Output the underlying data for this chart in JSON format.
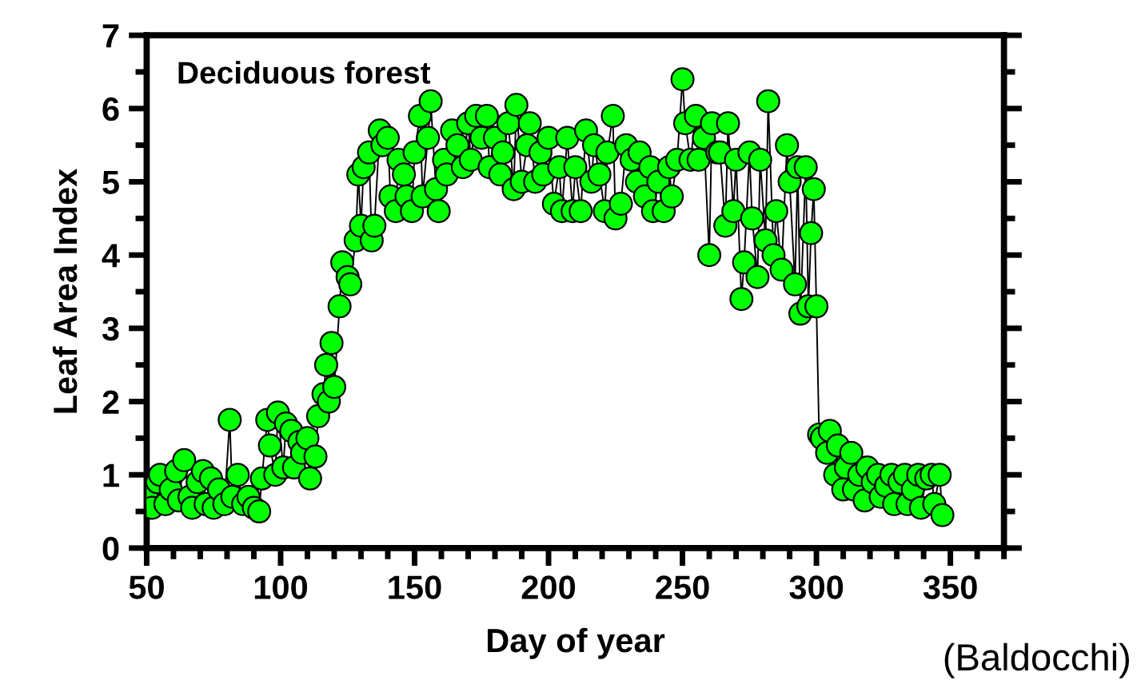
{
  "chart_data": {
    "type": "line",
    "title": "Deciduous forest",
    "xlabel": "Day of year",
    "ylabel": "Leaf Area Index",
    "annotations": [
      "(Baldocchi)"
    ],
    "x": [
      50,
      52,
      54,
      55,
      57,
      59,
      61,
      62,
      64,
      66,
      67,
      69,
      71,
      72,
      74,
      75,
      77,
      79,
      81,
      82,
      84,
      86,
      88,
      90,
      92,
      93,
      95,
      96,
      98,
      99,
      101,
      102,
      104,
      105,
      107,
      108,
      110,
      111,
      113,
      114,
      116,
      117,
      118,
      119,
      120,
      122,
      123,
      125,
      126,
      128,
      129,
      130,
      131,
      133,
      134,
      135,
      137,
      138,
      140,
      141,
      143,
      144,
      146,
      147,
      149,
      150,
      152,
      153,
      155,
      156,
      158,
      159,
      161,
      162,
      164,
      166,
      168,
      170,
      171,
      173,
      175,
      177,
      178,
      180,
      182,
      183,
      185,
      187,
      188,
      190,
      192,
      193,
      195,
      197,
      198,
      200,
      202,
      204,
      205,
      207,
      209,
      210,
      212,
      214,
      216,
      217,
      219,
      221,
      222,
      224,
      225,
      227,
      229,
      231,
      233,
      234,
      236,
      238,
      239,
      241,
      243,
      245,
      246,
      248,
      250,
      251,
      253,
      255,
      256,
      258,
      260,
      261,
      263,
      264,
      266,
      267,
      269,
      270,
      272,
      273,
      275,
      276,
      278,
      279,
      281,
      282,
      284,
      285,
      287,
      289,
      290,
      292,
      293,
      294,
      296,
      297,
      298,
      299,
      300,
      301,
      302,
      304,
      305,
      307,
      308,
      310,
      311,
      313,
      314,
      316,
      318,
      319,
      321,
      323,
      324,
      326,
      328,
      329,
      331,
      333,
      334,
      336,
      338,
      339,
      341,
      343,
      344,
      346,
      347
    ],
    "series": [
      {
        "color": "#00ff00",
        "values": [
          0.7,
          0.55,
          0.9,
          1.0,
          0.6,
          0.8,
          1.05,
          0.65,
          1.2,
          0.7,
          0.55,
          0.9,
          1.05,
          0.6,
          0.95,
          0.55,
          0.8,
          0.6,
          1.75,
          0.7,
          1.0,
          0.6,
          0.7,
          0.55,
          0.5,
          0.95,
          1.75,
          1.4,
          1.0,
          1.85,
          1.1,
          1.7,
          1.6,
          1.1,
          1.45,
          1.3,
          1.5,
          0.95,
          1.25,
          1.8,
          2.1,
          2.5,
          2.0,
          2.8,
          2.2,
          3.3,
          3.9,
          3.7,
          3.6,
          4.2,
          5.1,
          4.4,
          5.2,
          5.4,
          4.2,
          4.4,
          5.7,
          5.5,
          5.6,
          4.8,
          4.6,
          5.3,
          5.1,
          4.8,
          4.6,
          5.4,
          5.9,
          4.8,
          5.6,
          6.1,
          4.9,
          4.6,
          5.3,
          5.1,
          5.7,
          5.5,
          5.2,
          5.8,
          5.3,
          5.9,
          5.6,
          5.9,
          5.2,
          5.6,
          5.1,
          5.4,
          5.8,
          4.9,
          6.05,
          5.0,
          5.5,
          5.8,
          5.0,
          5.4,
          5.1,
          5.6,
          4.7,
          5.2,
          4.6,
          5.6,
          4.6,
          5.2,
          4.6,
          5.7,
          5.0,
          5.5,
          5.1,
          4.6,
          5.4,
          5.9,
          4.5,
          4.7,
          5.5,
          5.3,
          5.0,
          5.4,
          4.8,
          5.2,
          4.6,
          5.0,
          4.6,
          5.2,
          4.8,
          5.3,
          6.4,
          5.8,
          5.3,
          5.9,
          5.3,
          5.6,
          4.0,
          5.8,
          5.4,
          5.4,
          4.4,
          5.8,
          4.6,
          5.3,
          3.4,
          3.9,
          5.4,
          4.5,
          3.7,
          5.3,
          4.2,
          6.1,
          4.0,
          4.6,
          3.8,
          5.5,
          5.0,
          3.6,
          5.2,
          3.2,
          5.2,
          3.3,
          4.3,
          4.9,
          3.3,
          1.55,
          1.5,
          1.3,
          1.6,
          1.0,
          1.4,
          0.8,
          1.1,
          1.3,
          0.8,
          1.0,
          0.65,
          1.1,
          0.9,
          1.0,
          0.7,
          0.85,
          1.0,
          0.6,
          0.9,
          1.0,
          0.6,
          0.8,
          1.0,
          0.55,
          0.95,
          1.0,
          0.6,
          1.0,
          0.45
        ]
      }
    ],
    "marker": "circle",
    "line_style": "solid",
    "grid": false,
    "xlim": [
      50,
      370
    ],
    "xticks": [
      50,
      {
        "value": 60,
        "label": null
      },
      {
        "value": 70,
        "label": null
      },
      {
        "value": 80,
        "label": null
      },
      {
        "value": 90,
        "label": null
      },
      100,
      {
        "value": 110,
        "label": null
      },
      {
        "value": 120,
        "label": null
      },
      {
        "value": 130,
        "label": null
      },
      {
        "value": 140,
        "label": null
      },
      150,
      {
        "value": 160,
        "label": null
      },
      {
        "value": 170,
        "label": null
      },
      {
        "value": 180,
        "label": null
      },
      {
        "value": 190,
        "label": null
      },
      200,
      {
        "value": 210,
        "label": null
      },
      {
        "value": 220,
        "label": null
      },
      {
        "value": 230,
        "label": null
      },
      {
        "value": 240,
        "label": null
      },
      250,
      {
        "value": 260,
        "label": null
      },
      {
        "value": 270,
        "label": null
      },
      {
        "value": 280,
        "label": null
      },
      {
        "value": 290,
        "label": null
      },
      300,
      {
        "value": 310,
        "label": null
      },
      {
        "value": 320,
        "label": null
      },
      {
        "value": 330,
        "label": null
      },
      {
        "value": 340,
        "label": null
      },
      350,
      {
        "value": 360,
        "label": null
      },
      {
        "value": 370,
        "label": null
      }
    ],
    "ylim": [
      0,
      7
    ],
    "yticks": [
      0,
      {
        "value": 0.5,
        "label": null
      },
      1,
      {
        "value": 1.5,
        "label": null
      },
      2,
      {
        "value": 2.5,
        "label": null
      },
      3,
      {
        "value": 3.5,
        "label": null
      },
      4,
      {
        "value": 4.5,
        "label": null
      },
      5,
      {
        "value": 5.5,
        "label": null
      },
      6,
      {
        "value": 6.5,
        "label": null
      },
      7
    ]
  }
}
